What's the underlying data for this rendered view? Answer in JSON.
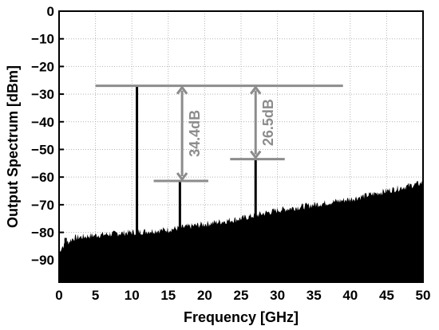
{
  "chart_data": {
    "type": "line",
    "xlabel": "Frequency [GHz]",
    "ylabel": "Output Spectrum [dBm]",
    "xlim": [
      0,
      50
    ],
    "ylim": [
      -98,
      0
    ],
    "xticks": [
      0,
      5,
      10,
      15,
      20,
      25,
      30,
      35,
      40,
      45,
      50
    ],
    "yticks": [
      0,
      -10,
      -20,
      -30,
      -40,
      -50,
      -60,
      -70,
      -80,
      -90
    ],
    "grid": true,
    "noise_floor": {
      "x": [
        0,
        0.5,
        1,
        2,
        5,
        10,
        15,
        20,
        25,
        30,
        35,
        40,
        45,
        50
      ],
      "y": [
        -87,
        -85,
        -84,
        -82,
        -81,
        -80,
        -79,
        -77,
        -75,
        -72,
        -70,
        -68,
        -65,
        -62
      ]
    },
    "spurs": [
      {
        "x": 0.9,
        "y": -82
      },
      {
        "x": 10.7,
        "y": -27
      },
      {
        "x": 16.6,
        "y": -61.4
      },
      {
        "x": 27.0,
        "y": -53.5
      }
    ],
    "reference_levels": [
      {
        "x1": 5,
        "x2": 39,
        "y": -27
      },
      {
        "x1": 13,
        "x2": 20.5,
        "y": -61.4
      },
      {
        "x1": 23.5,
        "x2": 31,
        "y": -53.5
      }
    ],
    "annotations": [
      {
        "text": "34.4dB",
        "x": 16.9,
        "y_top": -27,
        "y_bottom": -61.4
      },
      {
        "text": "26.5dB",
        "x": 27.0,
        "y_top": -27,
        "y_bottom": -53.5
      }
    ],
    "colors": {
      "spectrum": "#000000",
      "annotation": "#8c8c8c",
      "grid": "#b4b4b4"
    }
  }
}
